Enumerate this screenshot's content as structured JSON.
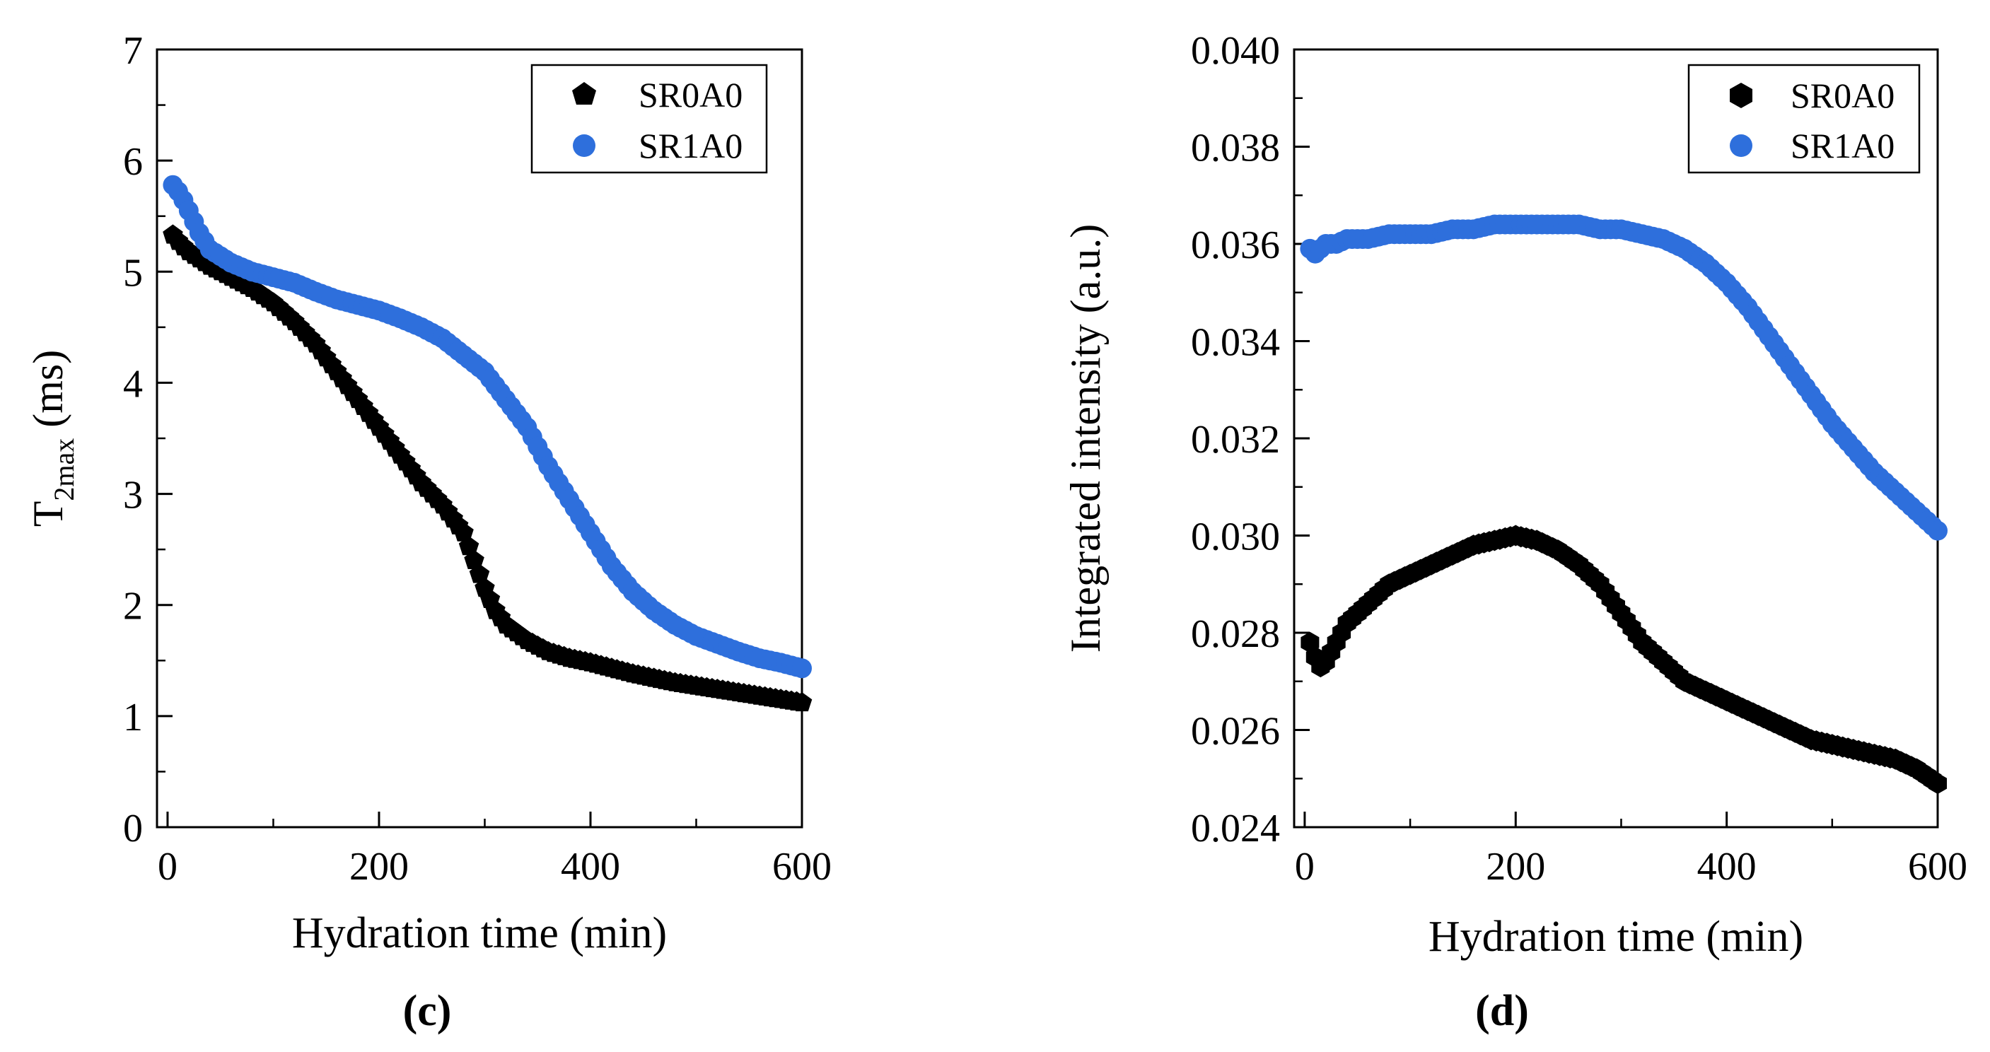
{
  "colors": {
    "series_black": "#000000",
    "series_blue": "#2e6fdc",
    "axis": "#000000",
    "background": "#ffffff"
  },
  "chart_data": [
    {
      "panel": "(c)",
      "panel_letter": "c",
      "type": "scatter",
      "title": "",
      "xlabel": "Hydration time (min)",
      "ylabel_main": "T",
      "ylabel_sub": "2max",
      "ylabel_unit": " (ms)",
      "xlim": [
        -10,
        600
      ],
      "ylim": [
        0,
        7
      ],
      "xticks": [
        0,
        200,
        400,
        600
      ],
      "xtick_labels": [
        "0",
        "200",
        "400",
        "600"
      ],
      "yticks": [
        0,
        1,
        2,
        3,
        4,
        5,
        6,
        7
      ],
      "ytick_labels": [
        "0",
        "1",
        "2",
        "3",
        "4",
        "5",
        "6",
        "7"
      ],
      "legend_position": "top-right",
      "series": [
        {
          "name": "SR0A0",
          "marker": "pentagon",
          "color": "#000000",
          "x": [
            5,
            12,
            20,
            40,
            60,
            80,
            100,
            120,
            140,
            160,
            180,
            200,
            220,
            240,
            260,
            280,
            300,
            310,
            320,
            340,
            360,
            380,
            400,
            420,
            440,
            460,
            480,
            500,
            520,
            540,
            560,
            580,
            600
          ],
          "y": [
            5.33,
            5.25,
            5.18,
            5.05,
            4.95,
            4.85,
            4.72,
            4.55,
            4.35,
            4.1,
            3.85,
            3.6,
            3.35,
            3.1,
            2.9,
            2.65,
            2.15,
            1.95,
            1.82,
            1.68,
            1.58,
            1.52,
            1.48,
            1.43,
            1.38,
            1.34,
            1.3,
            1.27,
            1.24,
            1.21,
            1.18,
            1.15,
            1.12
          ]
        },
        {
          "name": "SR1A0",
          "marker": "circle",
          "color": "#2e6fdc",
          "x": [
            5,
            12,
            20,
            30,
            40,
            60,
            80,
            100,
            120,
            140,
            160,
            180,
            200,
            220,
            240,
            260,
            280,
            300,
            320,
            340,
            360,
            380,
            400,
            420,
            440,
            460,
            480,
            500,
            520,
            540,
            560,
            580,
            600
          ],
          "y": [
            5.78,
            5.7,
            5.55,
            5.35,
            5.2,
            5.08,
            5.0,
            4.95,
            4.9,
            4.82,
            4.75,
            4.7,
            4.65,
            4.58,
            4.5,
            4.4,
            4.25,
            4.1,
            3.85,
            3.6,
            3.25,
            2.95,
            2.65,
            2.35,
            2.12,
            1.95,
            1.82,
            1.72,
            1.65,
            1.58,
            1.52,
            1.48,
            1.43
          ]
        }
      ]
    },
    {
      "panel": "(d)",
      "panel_letter": "d",
      "type": "scatter",
      "title": "",
      "xlabel": "Hydration time (min)",
      "ylabel": "Integrated intensity (a.u.)",
      "xlim": [
        -10,
        600
      ],
      "ylim": [
        0.024,
        0.04
      ],
      "xticks": [
        0,
        200,
        400,
        600
      ],
      "xtick_labels": [
        "0",
        "200",
        "400",
        "600"
      ],
      "yticks": [
        0.024,
        0.026,
        0.028,
        0.03,
        0.032,
        0.034,
        0.036,
        0.038,
        0.04
      ],
      "ytick_labels": [
        "0.024",
        "0.026",
        "0.028",
        "0.030",
        "0.032",
        "0.034",
        "0.036",
        "0.038",
        "0.040"
      ],
      "legend_position": "top-right",
      "series": [
        {
          "name": "SR0A0",
          "marker": "hexagon",
          "color": "#000000",
          "x": [
            5,
            10,
            15,
            20,
            30,
            40,
            60,
            80,
            100,
            120,
            140,
            160,
            180,
            200,
            220,
            240,
            260,
            280,
            300,
            320,
            340,
            360,
            380,
            400,
            420,
            440,
            460,
            480,
            500,
            520,
            540,
            560,
            580,
            600
          ],
          "y": [
            0.0278,
            0.0275,
            0.0273,
            0.0274,
            0.0278,
            0.0282,
            0.0286,
            0.029,
            0.0292,
            0.0294,
            0.0296,
            0.0298,
            0.0299,
            0.03,
            0.0299,
            0.0297,
            0.0294,
            0.029,
            0.0284,
            0.0278,
            0.0274,
            0.027,
            0.0268,
            0.0266,
            0.0264,
            0.0262,
            0.026,
            0.0258,
            0.0257,
            0.0256,
            0.0255,
            0.0254,
            0.0252,
            0.0249
          ]
        },
        {
          "name": "SR1A0",
          "marker": "circle",
          "color": "#2e6fdc",
          "x": [
            5,
            10,
            15,
            20,
            30,
            40,
            60,
            80,
            100,
            120,
            140,
            160,
            180,
            200,
            220,
            240,
            260,
            280,
            300,
            320,
            340,
            360,
            380,
            400,
            420,
            440,
            460,
            480,
            500,
            520,
            540,
            560,
            580,
            600
          ],
          "y": [
            0.0359,
            0.0358,
            0.0359,
            0.036,
            0.036,
            0.0361,
            0.0361,
            0.0362,
            0.0362,
            0.0362,
            0.0363,
            0.0363,
            0.0364,
            0.0364,
            0.0364,
            0.0364,
            0.0364,
            0.0363,
            0.0363,
            0.0362,
            0.0361,
            0.0359,
            0.0356,
            0.0352,
            0.0347,
            0.0341,
            0.0335,
            0.0329,
            0.0323,
            0.0318,
            0.0313,
            0.0309,
            0.0305,
            0.0301
          ]
        }
      ]
    }
  ]
}
